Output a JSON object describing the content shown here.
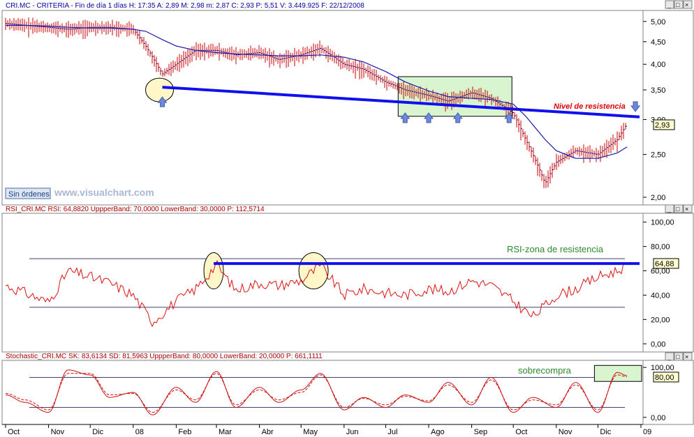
{
  "window_buttons": [
    "_",
    "□",
    "×"
  ],
  "panels": {
    "price": {
      "header": "CRI.MC - CRITERIA - Fin de día 1 días H: 17:35 A: 2,89 M: 2,98 m: 2,87 C: 2,93 P: 5,51 V: 3.449.925 F: 22/12/2008",
      "price_label": "2,93",
      "status_label": "Sin órdenes",
      "watermark": "www.visualchart.com",
      "annotation": "Nivel de resistencia",
      "scale": "log",
      "yticks": [
        "5,00",
        "4,50",
        "4,00",
        "3,50",
        "3,00",
        "2,50",
        "2,00"
      ]
    },
    "rsi": {
      "header": "RSI_CRI.MC RSI: 64,8820 UppperBand: 70,0000 LowerBand: 30,0000 P: 112,5714",
      "value_label": "64,88",
      "annotation": "RSI-zona de resistencia",
      "upper_band": 70,
      "lower_band": 30,
      "yticks": [
        "100,00",
        "80,00",
        "60,00",
        "40,00",
        "20,00",
        "0,00"
      ]
    },
    "stoch": {
      "header": "Stochastic_CRI.MC SK: 83,6134 SD: 81,5963 UppperBand: 80,0000 LowerBand: 20,0000 P: 661,1111",
      "value_label": "80,00",
      "annotation": "sobrecompra",
      "upper_band": 80,
      "lower_band": 20,
      "yticks": [
        "100,00",
        "0,00"
      ]
    }
  },
  "xaxis_labels": [
    "Oct",
    "Nov",
    "Dic",
    "08",
    "Feb",
    "Mar",
    "Abr",
    "May",
    "Jun",
    "Jul",
    "Ago",
    "Sep",
    "Oct",
    "Nov",
    "Dic",
    "09"
  ],
  "chart_data": [
    {
      "type": "line",
      "title": "CRI.MC - CRITERIA",
      "scale": "log",
      "ylim": [
        1.95,
        5.2
      ],
      "x": [
        "2007-10-01",
        "2007-10-15",
        "2007-11-01",
        "2007-11-15",
        "2007-12-01",
        "2007-12-15",
        "2008-01-01",
        "2008-01-10",
        "2008-01-22",
        "2008-02-01",
        "2008-02-15",
        "2008-03-01",
        "2008-03-15",
        "2008-04-01",
        "2008-04-15",
        "2008-05-01",
        "2008-05-15",
        "2008-06-01",
        "2008-06-15",
        "2008-07-01",
        "2008-07-15",
        "2008-08-01",
        "2008-08-15",
        "2008-09-01",
        "2008-09-15",
        "2008-10-01",
        "2008-10-10",
        "2008-10-24",
        "2008-11-01",
        "2008-11-15",
        "2008-12-01",
        "2008-12-15",
        "2008-12-22"
      ],
      "series": [
        {
          "name": "C",
          "values": [
            4.95,
            4.9,
            4.85,
            4.8,
            4.85,
            4.85,
            4.8,
            4.4,
            3.8,
            4.0,
            4.3,
            4.3,
            4.2,
            4.25,
            4.1,
            4.2,
            4.35,
            4.0,
            3.9,
            3.65,
            3.5,
            3.4,
            3.3,
            3.45,
            3.35,
            3.1,
            2.7,
            2.15,
            2.4,
            2.55,
            2.5,
            2.7,
            2.93
          ]
        },
        {
          "name": "",
          "values": [
            4.9,
            4.9,
            4.88,
            4.85,
            4.83,
            4.83,
            4.8,
            4.75,
            4.55,
            4.4,
            4.3,
            4.25,
            4.22,
            4.2,
            4.18,
            4.18,
            4.2,
            4.15,
            4.05,
            3.85,
            3.65,
            3.48,
            3.38,
            3.35,
            3.33,
            3.25,
            3.05,
            2.7,
            2.55,
            2.45,
            2.45,
            2.52,
            2.6
          ]
        }
      ],
      "trendline": {
        "x": [
          "2008-01-22",
          "2008-12-31"
        ],
        "y": [
          3.55,
          3.04
        ]
      },
      "resistance_box": {
        "x": [
          "2008-07-10",
          "2008-09-30"
        ],
        "y": [
          3.05,
          3.75
        ]
      },
      "arrows_up": [
        "2008-01-22",
        "2008-07-15",
        "2008-08-01",
        "2008-08-22",
        "2008-09-28"
      ],
      "arrow_down": "2008-12-28"
    },
    {
      "type": "line",
      "title": "RSI_CRI.MC",
      "ylim": [
        -5,
        105
      ],
      "x": [
        "2007-10-01",
        "2007-10-15",
        "2007-11-01",
        "2007-11-15",
        "2007-12-01",
        "2007-12-15",
        "2008-01-01",
        "2008-01-15",
        "2008-02-01",
        "2008-02-15",
        "2008-03-01",
        "2008-03-15",
        "2008-04-01",
        "2008-04-15",
        "2008-05-01",
        "2008-05-15",
        "2008-06-01",
        "2008-06-15",
        "2008-07-01",
        "2008-07-15",
        "2008-08-01",
        "2008-08-15",
        "2008-09-01",
        "2008-09-15",
        "2008-10-01",
        "2008-10-15",
        "2008-11-01",
        "2008-11-15",
        "2008-12-01",
        "2008-12-15",
        "2008-12-22"
      ],
      "series": [
        {
          "name": "RSI",
          "values": [
            48,
            42,
            34,
            60,
            55,
            50,
            40,
            18,
            35,
            45,
            65,
            44,
            50,
            48,
            52,
            64,
            40,
            45,
            42,
            40,
            45,
            43,
            52,
            48,
            35,
            22,
            40,
            45,
            55,
            60,
            64.88
          ]
        }
      ],
      "resistance_line": {
        "x": [
          "2008-02-28",
          "2008-12-31"
        ],
        "y": [
          66,
          66
        ]
      },
      "circles": [
        "2008-02-28",
        "2008-05-10"
      ]
    },
    {
      "type": "line",
      "title": "Stochastic_CRI.MC",
      "ylim": [
        -10,
        110
      ],
      "x": [
        "2007-10-01",
        "2007-10-15",
        "2007-11-01",
        "2007-11-15",
        "2007-12-01",
        "2007-12-15",
        "2008-01-01",
        "2008-01-15",
        "2008-02-01",
        "2008-02-15",
        "2008-03-01",
        "2008-03-15",
        "2008-04-01",
        "2008-04-15",
        "2008-05-01",
        "2008-05-15",
        "2008-06-01",
        "2008-06-15",
        "2008-07-01",
        "2008-07-15",
        "2008-08-01",
        "2008-08-15",
        "2008-09-01",
        "2008-09-15",
        "2008-10-01",
        "2008-10-15",
        "2008-11-01",
        "2008-11-15",
        "2008-12-01",
        "2008-12-15",
        "2008-12-22"
      ],
      "series": [
        {
          "name": "SK",
          "values": [
            45,
            30,
            10,
            95,
            85,
            40,
            50,
            5,
            60,
            30,
            92,
            20,
            60,
            30,
            55,
            88,
            15,
            40,
            20,
            45,
            30,
            70,
            25,
            80,
            10,
            40,
            20,
            70,
            10,
            90,
            83.61
          ]
        },
        {
          "name": "SD",
          "values": [
            48,
            35,
            15,
            88,
            88,
            45,
            48,
            10,
            55,
            35,
            88,
            25,
            55,
            35,
            50,
            85,
            20,
            38,
            25,
            42,
            33,
            65,
            30,
            75,
            15,
            35,
            25,
            65,
            15,
            85,
            81.6
          ]
        }
      ],
      "overbought_box": {
        "x": [
          "2008-12-01",
          "2008-12-31"
        ],
        "y": [
          72,
          104
        ]
      }
    }
  ]
}
